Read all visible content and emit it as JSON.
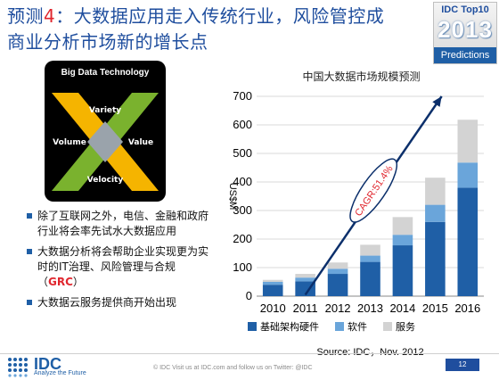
{
  "title": {
    "prefix": "预测",
    "number": "4",
    "rest": "：大数据应用走入传统行业，风险管控成商业分析市场新的增长点"
  },
  "badge": {
    "line1": "IDC Top10",
    "line2": "2013",
    "line3": "Predictions"
  },
  "logo": {
    "heading": "Big Data Technology",
    "words": {
      "top": "Variety",
      "left": "Volume",
      "right": "Value",
      "bottom": "Velocity"
    },
    "colors": {
      "yellow": "#f5b400",
      "green": "#7ab22e",
      "gray": "#9aa3ab",
      "white": "#ffffff"
    }
  },
  "bullets": [
    {
      "text": "除了互联网之外，电信、金融和政府行业将会率先试水大数据应用"
    },
    {
      "text_before": "大数据分析将会帮助企业实现更为实时的IT治理、风险管理与合规（",
      "highlight": "GRC",
      "text_after": "）"
    },
    {
      "text": "大数据云服务提供商开始出现"
    }
  ],
  "chart_data": {
    "type": "bar",
    "stacked": true,
    "title": "中国大数据市场规模预测",
    "ylabel": "US$M",
    "ylim": [
      0,
      700
    ],
    "yticks": [
      0,
      100,
      200,
      300,
      400,
      500,
      600,
      700
    ],
    "categories": [
      "2010",
      "2011",
      "2012",
      "2013",
      "2014",
      "2015",
      "2016"
    ],
    "series": [
      {
        "name": "基础架构硬件",
        "color": "#1f5fa6",
        "values": [
          40,
          52,
          78,
          120,
          178,
          260,
          380
        ]
      },
      {
        "name": "软件",
        "color": "#6aa5da",
        "values": [
          10,
          13,
          18,
          22,
          37,
          60,
          88
        ]
      },
      {
        "name": "服务",
        "color": "#d3d3d3",
        "values": [
          7,
          13,
          22,
          38,
          62,
          95,
          150
        ]
      }
    ],
    "annotation": {
      "text": "CAGR:51.4%",
      "color": "#e0262e"
    },
    "grid": true,
    "legend_position": "bottom",
    "source": "Source: IDC，Nov. 2012"
  },
  "footer": {
    "logo_text": "IDC",
    "tagline": "Analyze the Future",
    "copyright": "© IDC   Visit us at IDC.com and follow us on Twitter: @IDC",
    "page": "12"
  }
}
